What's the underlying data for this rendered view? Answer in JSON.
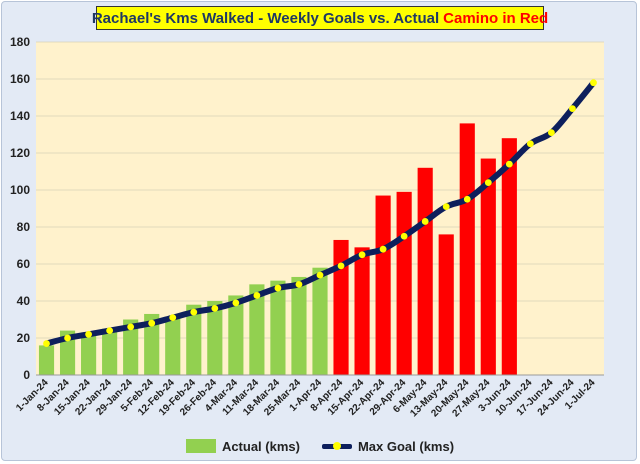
{
  "chart_data": {
    "type": "bar",
    "title": "Rachael's Kms Walked - Weekly Goals vs. Actual",
    "title_accent": "Camino in Red",
    "categories": [
      "1-Jan-24",
      "8-Jan-24",
      "15-Jan-24",
      "22-Jan-24",
      "29-Jan-24",
      "5-Feb-24",
      "12-Feb-24",
      "19-Feb-24",
      "26-Feb-24",
      "4-Mar-24",
      "11-Mar-24",
      "18-Mar-24",
      "25-Mar-24",
      "1-Apr-24",
      "8-Apr-24",
      "15-Apr-24",
      "22-Apr-24",
      "29-Apr-24",
      "6-May-24",
      "13-May-24",
      "20-May-24",
      "27-May-24",
      "3-Jun-24",
      "10-Jun-24",
      "17-Jun-24",
      "24-Jun-24",
      "1-Jul-24"
    ],
    "series": [
      {
        "name": "Actual (kms)",
        "type": "bar",
        "values": [
          16,
          24,
          23,
          25,
          30,
          33,
          31,
          38,
          40,
          43,
          49,
          51,
          53,
          58,
          73,
          69,
          97,
          99,
          112,
          76,
          136,
          117,
          128,
          null,
          null,
          null,
          null
        ],
        "colors": [
          "#92d050",
          "#92d050",
          "#92d050",
          "#92d050",
          "#92d050",
          "#92d050",
          "#92d050",
          "#92d050",
          "#92d050",
          "#92d050",
          "#92d050",
          "#92d050",
          "#92d050",
          "#92d050",
          "#ff0000",
          "#ff0000",
          "#ff0000",
          "#ff0000",
          "#ff0000",
          "#ff0000",
          "#ff0000",
          "#ff0000",
          "#ff0000",
          "#ff0000",
          "#ff0000",
          "#ff0000",
          "#ff0000"
        ]
      },
      {
        "name": "Max Goal (kms)",
        "type": "line",
        "values": [
          17,
          20,
          22,
          24,
          26,
          28,
          31,
          34,
          36,
          39,
          43,
          47,
          49,
          54,
          59,
          65,
          68,
          75,
          83,
          91,
          95,
          104,
          114,
          125,
          131,
          144,
          158
        ],
        "color": "#0d1f5c",
        "marker_color": "#ffff00"
      }
    ],
    "xlabel": "",
    "ylabel": "",
    "ylim": [
      0,
      180
    ],
    "yticks": [
      0,
      20,
      40,
      60,
      80,
      100,
      120,
      140,
      160,
      180
    ],
    "grid": true,
    "legend": "bottom",
    "plot_background": "#fff2cc",
    "chart_background": "#e3eaf5"
  }
}
